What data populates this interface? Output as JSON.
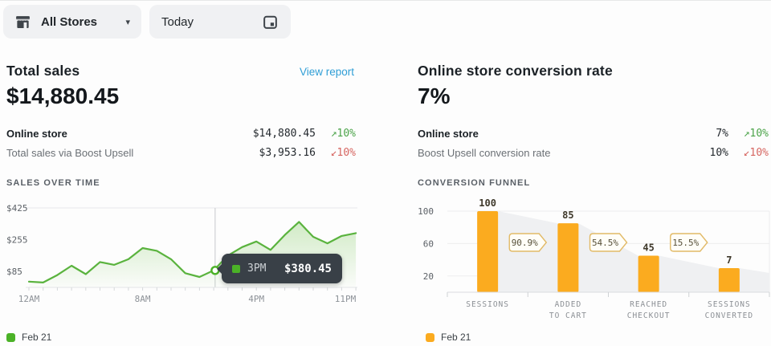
{
  "header": {
    "store_selector": "All Stores",
    "date_selector": "Today"
  },
  "icons": {
    "trend_up": "↗",
    "trend_down": "↙",
    "caret_down": "▾"
  },
  "colors": {
    "green_line": "#5ab33e",
    "green_marker": "#4bb227",
    "orange": "#fbab1f",
    "link_blue": "#2f9ed6",
    "delta_up": "#4aa348",
    "delta_down": "#d66560"
  },
  "total_sales": {
    "title": "Total sales",
    "view_report": "View report",
    "value": "$14,880.45",
    "rows": [
      {
        "label": "Online store",
        "value": "$14,880.45",
        "delta": "10%",
        "direction": "up"
      },
      {
        "label": "Total sales via Boost Upsell",
        "value": "$3,953.16",
        "delta": "10%",
        "direction": "down"
      }
    ],
    "section_title": "SALES OVER TIME",
    "legend": "Feb 21"
  },
  "conversion_rate": {
    "title": "Online store conversion rate",
    "value": "7%",
    "rows": [
      {
        "label": "Online store",
        "value": "7%",
        "delta": "10%",
        "direction": "up"
      },
      {
        "label": "Boost Upsell conversion rate",
        "value": "10%",
        "delta": "10%",
        "direction": "down"
      }
    ],
    "section_title": "CONVERSION FUNNEL",
    "legend": "Feb 21"
  },
  "chart_data": [
    {
      "type": "area",
      "title": "Sales over time",
      "series": [
        {
          "name": "Feb 21",
          "color": "#5ab33e",
          "values": [
            30,
            25,
            65,
            115,
            70,
            135,
            120,
            150,
            210,
            195,
            150,
            75,
            55,
            90,
            170,
            215,
            245,
            200,
            280,
            350,
            270,
            235,
            275,
            290
          ]
        }
      ],
      "x_unit": "hour",
      "ylim": [
        0,
        425
      ],
      "yticks": [
        {
          "label": "$425",
          "value": 425
        },
        {
          "label": "$255",
          "value": 255
        },
        {
          "label": "$85",
          "value": 85
        }
      ],
      "xticks": [
        {
          "label": "12AM",
          "hour": 0
        },
        {
          "label": "8AM",
          "hour": 8
        },
        {
          "label": "4PM",
          "hour": 16
        },
        {
          "label": "11PM",
          "hour": 23
        }
      ],
      "grid": "top-line-only",
      "legend_position": "bottom-left",
      "hover": {
        "hour": 13.1,
        "point_value": 90,
        "tooltip_time": "3PM",
        "tooltip_value": "$380.45"
      }
    },
    {
      "type": "bar",
      "title": "Conversion funnel",
      "categories": [
        [
          "SESSIONS"
        ],
        [
          "ADDED",
          "TO CART"
        ],
        [
          "REACHED",
          "CHECKOUT"
        ],
        [
          "SESSIONS",
          "CONVERTED"
        ]
      ],
      "values": [
        100,
        85,
        45,
        7
      ],
      "value_labels": [
        "100",
        "85",
        "45",
        "7"
      ],
      "drop_badges": [
        "90.9%",
        "54.5%",
        "15.5%"
      ],
      "yticks": [
        100,
        60,
        20
      ],
      "ylim": [
        0,
        107
      ],
      "bar_color": "#fbab1f",
      "series_name": "Feb 21",
      "legend_position": "bottom-left"
    }
  ]
}
